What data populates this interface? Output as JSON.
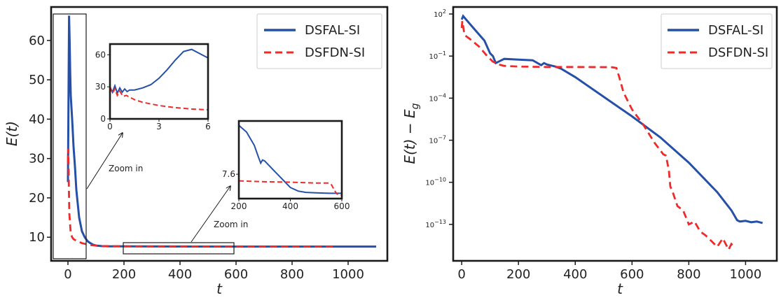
{
  "colors": {
    "al": "#2650a8",
    "dn": "#ee2a2a",
    "frame": "#1a1a1a"
  },
  "chart_data": [
    {
      "type": "line",
      "xlabel": "t",
      "ylabel": "E(t)",
      "xlim": [
        -60,
        1140
      ],
      "ylim": [
        4,
        68.5
      ],
      "xticks": [
        0,
        200,
        400,
        600,
        800,
        1000
      ],
      "xtick_labels": [
        "0",
        "200",
        "400",
        "600",
        "800",
        "1000"
      ],
      "yticks": [
        10,
        20,
        30,
        40,
        50,
        60
      ],
      "ytick_labels": [
        "10",
        "20",
        "30",
        "40",
        "50",
        "60"
      ],
      "grid": false,
      "legend_position": "top-right",
      "series": [
        {
          "name": "DSFAL-SI",
          "style": "solid",
          "x": [
            0,
            2,
            4,
            6,
            8,
            10,
            15,
            20,
            25,
            30,
            40,
            50,
            60,
            70,
            80,
            90,
            100,
            120,
            150,
            200,
            300,
            400,
            600,
            800,
            1000,
            1100
          ],
          "y": [
            24,
            45,
            66.3,
            60,
            52,
            46,
            40,
            33,
            28,
            22,
            15,
            11.5,
            10,
            9,
            8.5,
            8.1,
            7.9,
            7.75,
            7.7,
            7.68,
            7.66,
            7.64,
            7.62,
            7.62,
            7.62,
            7.62
          ]
        },
        {
          "name": "DSFDN-SI",
          "style": "dashed",
          "x": [
            0,
            1,
            2,
            3,
            5,
            10,
            15,
            20,
            30,
            50,
            80,
            120,
            200,
            400,
            600,
            700,
            800,
            960
          ],
          "y": [
            29,
            32.5,
            28,
            24,
            16,
            11,
            10,
            9.5,
            9.1,
            8.5,
            8.0,
            7.75,
            7.7,
            7.68,
            7.65,
            7.63,
            7.62,
            7.62
          ]
        }
      ],
      "annotations": [
        "Zoom in",
        "Zoom in"
      ],
      "insets": [
        {
          "xlim": [
            0,
            6
          ],
          "ylim": [
            0,
            70
          ],
          "xticks": [
            0,
            3,
            6
          ],
          "xtick_labels": [
            "0",
            "3",
            "6"
          ],
          "yticks": [
            0,
            30,
            60
          ],
          "ytick_labels": [
            "0",
            "30",
            "60"
          ],
          "series": [
            {
              "name": "DSFAL-SI",
              "x": [
                0,
                0.15,
                0.3,
                0.45,
                0.6,
                0.75,
                0.9,
                1.05,
                1.2,
                1.5,
                2.0,
                2.5,
                3.0,
                3.5,
                4.0,
                4.5,
                5.0,
                5.5,
                6.0
              ],
              "y": [
                30,
                25,
                31,
                24,
                29,
                25,
                28,
                25.5,
                27,
                27,
                29,
                32,
                38,
                46,
                55,
                63,
                65,
                61,
                57
              ]
            },
            {
              "name": "DSFDN-SI",
              "x": [
                0,
                0.15,
                0.3,
                0.45,
                0.6,
                0.8,
                1.0,
                1.5,
                2.0,
                3.0,
                4.0,
                5.0,
                6.0
              ],
              "y": [
                30,
                24,
                28,
                22,
                26,
                21,
                22,
                18,
                15.5,
                12.5,
                10.5,
                9.2,
                8.5
              ]
            }
          ]
        },
        {
          "xlim": [
            200,
            600
          ],
          "ylim": [
            7.545,
            7.72
          ],
          "xticks": [
            200,
            400,
            600
          ],
          "xtick_labels": [
            "200",
            "400",
            "600"
          ],
          "yticks": [
            7.6
          ],
          "ytick_labels": [
            "7.6"
          ],
          "series": [
            {
              "name": "DSFAL-SI",
              "x": [
                200,
                230,
                260,
                275,
                285,
                292,
                300,
                320,
                340,
                360,
                380,
                400,
                430,
                460,
                500,
                550,
                580,
                600
              ],
              "y": [
                7.71,
                7.695,
                7.665,
                7.64,
                7.625,
                7.632,
                7.63,
                7.618,
                7.606,
                7.594,
                7.582,
                7.57,
                7.562,
                7.559,
                7.558,
                7.557,
                7.557,
                7.557
              ]
            },
            {
              "name": "DSFDN-SI",
              "x": [
                200,
                300,
                400,
                500,
                530,
                550,
                560,
                570,
                580,
                590,
                600
              ],
              "y": [
                7.585,
                7.583,
                7.582,
                7.58,
                7.58,
                7.58,
                7.576,
                7.565,
                7.556,
                7.553,
                7.553
              ]
            }
          ]
        }
      ]
    },
    {
      "type": "line",
      "xlabel": "t",
      "ylabel": "E(t) − E_g",
      "yscale": "log",
      "xlim": [
        -30,
        1110
      ],
      "ylim_log10": [
        -15.6,
        2.5
      ],
      "xticks": [
        0,
        200,
        400,
        600,
        800,
        1000
      ],
      "xtick_labels": [
        "0",
        "200",
        "400",
        "600",
        "800",
        "1000"
      ],
      "yticks_log10": [
        2,
        -1,
        -4,
        -7,
        -10,
        -13
      ],
      "ytick_labels": [
        {
          "base": "10",
          "exp": "2"
        },
        {
          "base": "10",
          "exp": "−1"
        },
        {
          "base": "10",
          "exp": "−4"
        },
        {
          "base": "10",
          "exp": "−7"
        },
        {
          "base": "10",
          "exp": "−10"
        },
        {
          "base": "10",
          "exp": "−13"
        }
      ],
      "grid": false,
      "legend_position": "top-right",
      "series": [
        {
          "name": "DSFAL-SI",
          "style": "solid",
          "x": [
            0,
            5,
            20,
            50,
            80,
            100,
            110,
            120,
            130,
            150,
            200,
            250,
            280,
            290,
            300,
            330,
            350,
            400,
            500,
            600,
            700,
            800,
            900,
            950,
            970,
            980,
            1000,
            1020,
            1040,
            1060
          ],
          "y_log10": [
            1.6,
            1.85,
            1.5,
            0.8,
            0.1,
            -0.8,
            -1.0,
            -1.5,
            -1.4,
            -1.2,
            -1.25,
            -1.3,
            -1.65,
            -1.5,
            -1.6,
            -1.75,
            -1.9,
            -2.5,
            -3.9,
            -5.3,
            -6.8,
            -8.6,
            -10.7,
            -12.0,
            -12.7,
            -12.8,
            -12.75,
            -12.85,
            -12.8,
            -12.9
          ]
        },
        {
          "name": "DSFDN-SI",
          "style": "dashed",
          "x": [
            0,
            2,
            10,
            30,
            60,
            90,
            110,
            130,
            150,
            200,
            300,
            400,
            500,
            530,
            545,
            555,
            570,
            600,
            640,
            680,
            710,
            720,
            730,
            735,
            745,
            760,
            780,
            800,
            820,
            840,
            860,
            880,
            900,
            920,
            940,
            950,
            960
          ],
          "y_log10": [
            1.0,
            1.5,
            0.5,
            0.2,
            -0.3,
            -1.0,
            -1.4,
            -1.6,
            -1.7,
            -1.75,
            -1.78,
            -1.78,
            -1.79,
            -1.8,
            -1.85,
            -2.5,
            -3.6,
            -4.8,
            -5.9,
            -7.2,
            -8.0,
            -8.1,
            -9.2,
            -10.3,
            -10.8,
            -11.7,
            -12.0,
            -13.0,
            -12.8,
            -13.5,
            -13.8,
            -14.2,
            -14.6,
            -14.0,
            -14.8,
            -14.4,
            -14.6
          ]
        }
      ]
    }
  ]
}
